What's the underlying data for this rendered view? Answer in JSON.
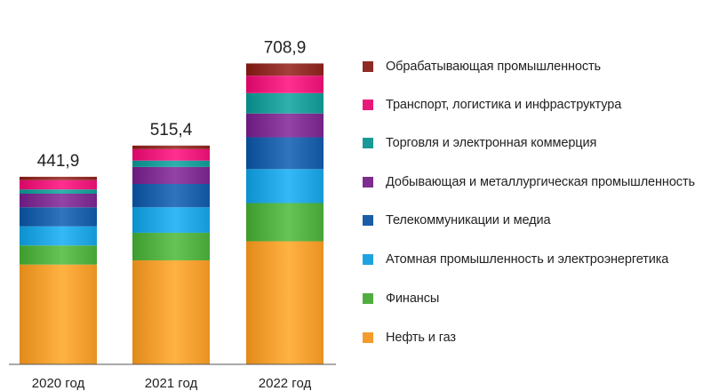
{
  "chart_data": {
    "type": "bar",
    "stacked": true,
    "categories": [
      "2020 год",
      "2021 год",
      "2022 год"
    ],
    "totals": [
      "441,9",
      "515,4",
      "708,9"
    ],
    "ylim": [
      0,
      760
    ],
    "grid": false,
    "legend_position": "right",
    "series": [
      {
        "name": "Нефть и газ",
        "color": "#f39c2c",
        "values": [
          235,
          245,
          290
        ]
      },
      {
        "name": "Финансы",
        "color": "#4fae3f",
        "values": [
          45,
          65,
          90
        ]
      },
      {
        "name": "Атомная промышленность и электроэнергетика",
        "color": "#1ea3e0",
        "values": [
          45,
          60,
          80
        ]
      },
      {
        "name": "Телекоммуникации и медиа",
        "color": "#1a5ea8",
        "values": [
          45,
          55,
          75
        ]
      },
      {
        "name": "Добывающая и металлургическая промышленность",
        "color": "#7d2c8f",
        "values": [
          32,
          40,
          56
        ]
      },
      {
        "name": "Торговля и электронная коммерция",
        "color": "#1a9a96",
        "values": [
          10,
          15,
          48
        ]
      },
      {
        "name": "Транспорт, логистика и инфраструктура",
        "color": "#e9197a",
        "values": [
          22,
          27,
          41
        ]
      },
      {
        "name": "Обрабатывающая промышленность",
        "color": "#8e2a24",
        "values": [
          7.9,
          8.4,
          28.9
        ]
      }
    ]
  }
}
